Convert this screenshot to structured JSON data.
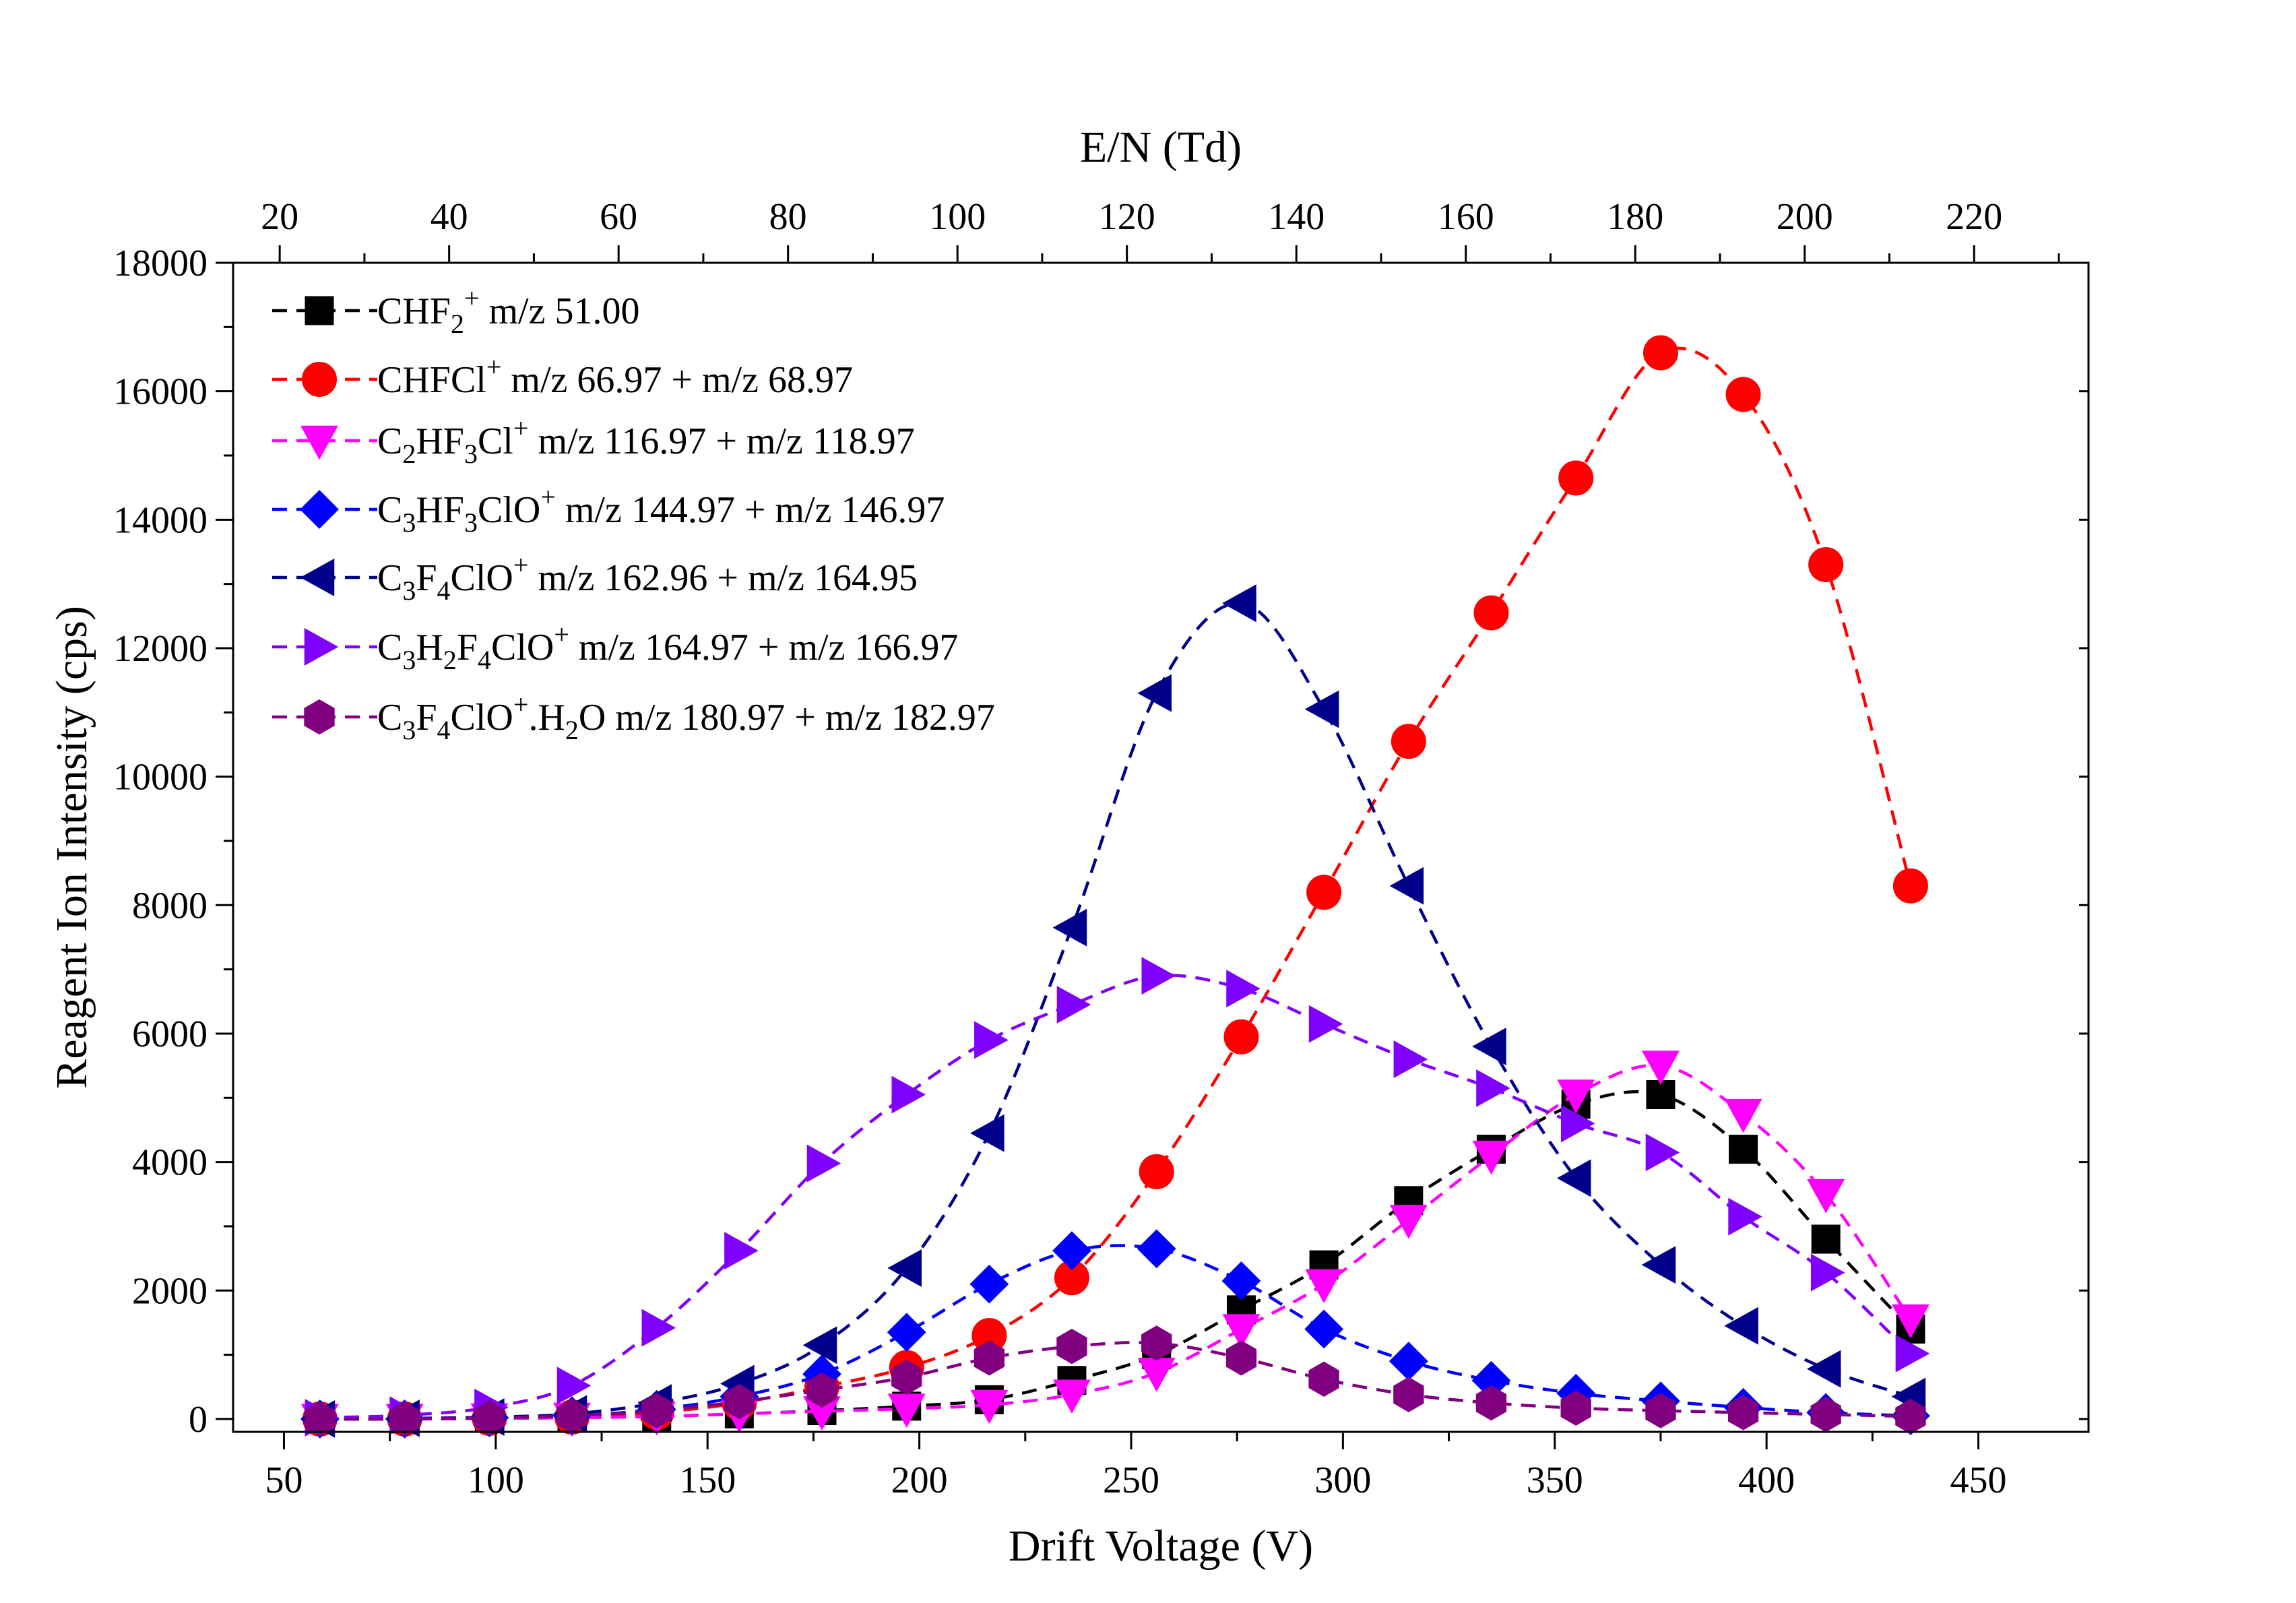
{
  "chart_data": {
    "type": "scatter",
    "title": "",
    "xlabel": "Drift Voltage (V)",
    "ylabel": "Reagent Ion Intensity (cps)",
    "x2label": "E/N (Td)",
    "xlim": [
      38,
      476
    ],
    "ylim": [
      -200,
      18000
    ],
    "x2lim": [
      14.5,
      233.5
    ],
    "xticks": [
      50,
      100,
      150,
      200,
      250,
      300,
      350,
      400,
      450
    ],
    "yticks": [
      0,
      2000,
      4000,
      6000,
      8000,
      10000,
      12000,
      14000,
      16000,
      18000
    ],
    "x2ticks": [
      20,
      40,
      60,
      80,
      100,
      120,
      140,
      160,
      180,
      200,
      220
    ],
    "grid": false,
    "legend_position": "top-left",
    "x": [
      58.5,
      78.5,
      98.5,
      118,
      138,
      157.5,
      177,
      197,
      216.5,
      236,
      256,
      276,
      295.5,
      315.5,
      335,
      355,
      375,
      394.5,
      414,
      434
    ],
    "series": [
      {
        "name": "CHF2+ m/z 51.00",
        "label": [
          {
            "t": "CHF"
          },
          {
            "t": "2",
            "s": "sub"
          },
          {
            "t": "+",
            "s": "sup"
          },
          {
            "t": " m/z 51.00"
          }
        ],
        "color": "#000000",
        "marker": "square",
        "values": [
          0,
          0,
          10,
          20,
          40,
          80,
          130,
          200,
          300,
          600,
          1000,
          1700,
          2400,
          3400,
          4200,
          4900,
          5050,
          4200,
          2800,
          1400
        ]
      },
      {
        "name": "CHFCl+ m/z 66.97 + m/z 68.97",
        "label": [
          {
            "t": "CHFCl"
          },
          {
            "t": "+",
            "s": "sup"
          },
          {
            "t": " m/z 66.97 + m/z 68.97"
          }
        ],
        "color": "#ff0000",
        "marker": "circle",
        "values": [
          0,
          0,
          10,
          30,
          100,
          250,
          500,
          800,
          1300,
          2200,
          3850,
          5950,
          8200,
          10550,
          12550,
          14650,
          16600,
          15950,
          13300,
          8300
        ]
      },
      {
        "name": "C2HF3Cl+ m/z 116.97 + m/z 118.97",
        "label": [
          {
            "t": "C"
          },
          {
            "t": "2",
            "s": "sub"
          },
          {
            "t": "HF"
          },
          {
            "t": "3",
            "s": "sub"
          },
          {
            "t": "Cl"
          },
          {
            "t": "+",
            "s": "sup"
          },
          {
            "t": " m/z 116.97 + m/z 118.97"
          }
        ],
        "color": "#ff00ff",
        "marker": "triangle-down",
        "values": [
          0,
          0,
          10,
          20,
          40,
          80,
          120,
          160,
          220,
          380,
          720,
          1400,
          2100,
          3100,
          4100,
          5050,
          5500,
          4750,
          3500,
          1550
        ]
      },
      {
        "name": "C3HF3ClO+ m/z 144.97 + m/z 146.97",
        "label": [
          {
            "t": "C"
          },
          {
            "t": "3",
            "s": "sub"
          },
          {
            "t": "HF"
          },
          {
            "t": "3",
            "s": "sub"
          },
          {
            "t": "ClO"
          },
          {
            "t": "+",
            "s": "sup"
          },
          {
            "t": " m/z 144.97 + m/z 146.97"
          }
        ],
        "color": "#0000ff",
        "marker": "diamond",
        "values": [
          0,
          0,
          20,
          50,
          150,
          350,
          700,
          1350,
          2100,
          2620,
          2650,
          2150,
          1400,
          900,
          600,
          400,
          280,
          180,
          100,
          50
        ]
      },
      {
        "name": "C3F4ClO+ m/z 162.96 + m/z 164.95",
        "label": [
          {
            "t": "C"
          },
          {
            "t": "3",
            "s": "sub"
          },
          {
            "t": "F"
          },
          {
            "t": "4",
            "s": "sub"
          },
          {
            "t": "ClO"
          },
          {
            "t": "+",
            "s": "sup"
          },
          {
            "t": " m/z 162.96 + m/z 164.95"
          }
        ],
        "color": "#00008b",
        "marker": "triangle-left",
        "values": [
          0,
          10,
          30,
          80,
          250,
          550,
          1150,
          2350,
          4450,
          7650,
          11300,
          12700,
          11050,
          8300,
          5800,
          3750,
          2400,
          1450,
          780,
          350
        ]
      },
      {
        "name": "C3H2F4ClO+ m/z 164.97 + m/z 166.97",
        "label": [
          {
            "t": "C"
          },
          {
            "t": "3",
            "s": "sub"
          },
          {
            "t": "H"
          },
          {
            "t": "2",
            "s": "sub"
          },
          {
            "t": "F"
          },
          {
            "t": "4",
            "s": "sub"
          },
          {
            "t": "ClO"
          },
          {
            "t": "+",
            "s": "sup"
          },
          {
            "t": " m/z 164.97 + m/z 166.97"
          }
        ],
        "color": "#8000ff",
        "marker": "triangle-right",
        "values": [
          20,
          60,
          180,
          520,
          1420,
          2620,
          3980,
          5050,
          5900,
          6450,
          6900,
          6700,
          6150,
          5600,
          5150,
          4600,
          4150,
          3150,
          2280,
          1020
        ]
      },
      {
        "name": "C3F4ClO+.H2O m/z 180.97 + m/z 182.97",
        "label": [
          {
            "t": "C"
          },
          {
            "t": "3",
            "s": "sub"
          },
          {
            "t": "F"
          },
          {
            "t": "4",
            "s": "sub"
          },
          {
            "t": "ClO"
          },
          {
            "t": "+",
            "s": "sup"
          },
          {
            "t": ".H"
          },
          {
            "t": "2",
            "s": "sub"
          },
          {
            "t": "O  m/z 180.97 + m/z 182.97"
          }
        ],
        "color": "#800080",
        "marker": "hexagon",
        "values": [
          0,
          0,
          20,
          50,
          130,
          270,
          450,
          650,
          950,
          1130,
          1180,
          950,
          620,
          380,
          250,
          170,
          130,
          100,
          70,
          40
        ]
      }
    ]
  }
}
